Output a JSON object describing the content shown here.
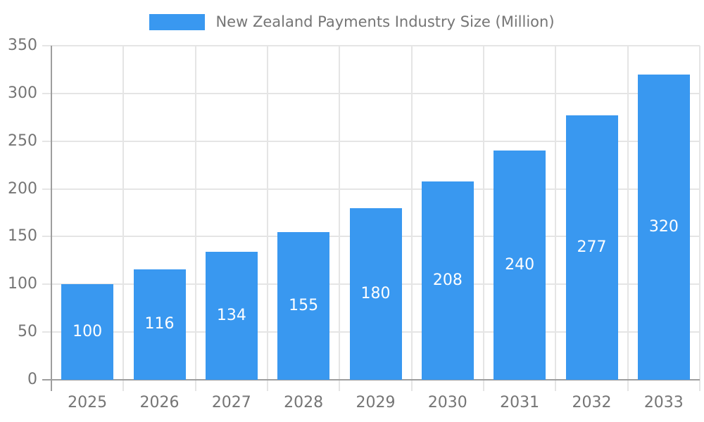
{
  "chart_data": {
    "type": "bar",
    "title": "New Zealand Payments Industry Size (Million)",
    "categories": [
      "2025",
      "2026",
      "2027",
      "2028",
      "2029",
      "2030",
      "2031",
      "2032",
      "2033"
    ],
    "series": [
      {
        "name": "New Zealand Payments Industry Size (Million)",
        "values": [
          100,
          116,
          134,
          155,
          180,
          208,
          240,
          277,
          320
        ]
      }
    ],
    "xlabel": "",
    "ylabel": "",
    "ylim": [
      0,
      350
    ],
    "y_tick_step": 50,
    "y_tick_labels": [
      "0",
      "50",
      "100",
      "150",
      "200",
      "250",
      "300",
      "350"
    ],
    "value_labels_shown": true,
    "grid": true,
    "legend_position": "top-center",
    "colors": {
      "bar": "#3998F0",
      "gridline": "#E5E5E5",
      "axis_line": "#9E9E9E",
      "tick_label": "#757575",
      "legend_text": "#757575",
      "bar_value_label": "#FFFFFF",
      "background": "#FFFFFF"
    }
  }
}
